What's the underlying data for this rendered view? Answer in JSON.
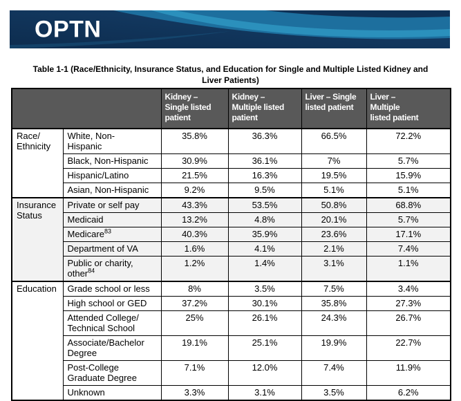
{
  "banner": {
    "logo": "OPTN",
    "colors": {
      "navy": "#10345a",
      "navy_dark": "#0d2c4e",
      "mid_blue": "#1d6f9e",
      "light_blue": "#2e93bf"
    }
  },
  "title": {
    "line1": "Table 1-1 (Race/Ethnicity, Insurance Status, and Education for Single and Multiple Listed Kidney and",
    "line2": "Liver Patients)"
  },
  "table": {
    "header_bg": "#595959",
    "header_text_color": "#ffffff",
    "shaded_section_bg": "#f2f2f2",
    "columns": [
      {
        "label": "Kidney –\nSingle listed\npatient"
      },
      {
        "label": "Kidney –\nMultiple listed\npatient"
      },
      {
        "label": "Liver – Single\nlisted patient"
      },
      {
        "label": "Liver –\nMultiple\nlisted patient"
      }
    ],
    "sections": [
      {
        "category": "Race/\nEthnicity",
        "shaded": false,
        "rows": [
          {
            "label": "White, Non-\nHispanic",
            "sup": "",
            "values": [
              "35.8%",
              "36.3%",
              "66.5%",
              "72.2%"
            ]
          },
          {
            "label": "Black, Non-Hispanic",
            "sup": "",
            "values": [
              "30.9%",
              "36.1%",
              "7%",
              "5.7%"
            ]
          },
          {
            "label": "Hispanic/Latino",
            "sup": "",
            "values": [
              "21.5%",
              "16.3%",
              "19.5%",
              "15.9%"
            ]
          },
          {
            "label": "Asian, Non-Hispanic",
            "sup": "",
            "values": [
              "9.2%",
              "9.5%",
              "5.1%",
              "5.1%"
            ]
          }
        ]
      },
      {
        "category": "Insurance\nStatus",
        "shaded": true,
        "rows": [
          {
            "label": "Private or self pay",
            "sup": "",
            "values": [
              "43.3%",
              "53.5%",
              "50.8%",
              "68.8%"
            ]
          },
          {
            "label": "Medicaid",
            "sup": "",
            "values": [
              "13.2%",
              "4.8%",
              "20.1%",
              "5.7%"
            ]
          },
          {
            "label": "Medicare",
            "sup": "83",
            "values": [
              "40.3%",
              "35.9%",
              "23.6%",
              "17.1%"
            ]
          },
          {
            "label": "Department of VA",
            "sup": "",
            "values": [
              "1.6%",
              "4.1%",
              "2.1%",
              "7.4%"
            ]
          },
          {
            "label": "Public or charity,\nother",
            "sup": "84",
            "values": [
              "1.2%",
              "1.4%",
              "3.1%",
              "1.1%"
            ]
          }
        ]
      },
      {
        "category": "Education",
        "shaded": false,
        "rows": [
          {
            "label": "Grade school or less",
            "sup": "",
            "values": [
              "8%",
              "3.5%",
              "7.5%",
              "3.4%"
            ]
          },
          {
            "label": "High school or GED",
            "sup": "",
            "values": [
              "37.2%",
              "30.1%",
              "35.8%",
              "27.3%"
            ]
          },
          {
            "label": "Attended College/\nTechnical School",
            "sup": "",
            "values": [
              "25%",
              "26.1%",
              "24.3%",
              "26.7%"
            ]
          },
          {
            "label": "Associate/Bachelor\nDegree",
            "sup": "",
            "values": [
              "19.1%",
              "25.1%",
              "19.9%",
              "22.7%"
            ]
          },
          {
            "label": "Post-College\nGraduate Degree",
            "sup": "",
            "values": [
              "7.1%",
              "12.0%",
              "7.4%",
              "11.9%"
            ]
          },
          {
            "label": "Unknown",
            "sup": "",
            "values": [
              "3.3%",
              "3.1%",
              "3.5%",
              "6.2%"
            ]
          }
        ]
      }
    ]
  }
}
